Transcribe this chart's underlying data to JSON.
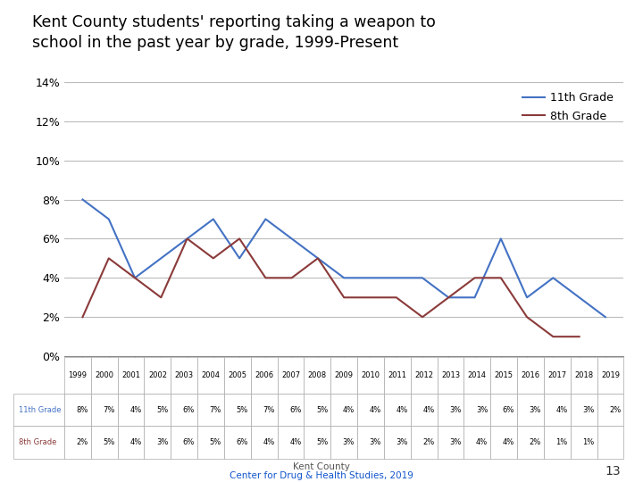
{
  "title": "Kent County students' reporting taking a weapon to\nschool in the past year by grade, 1999-Present",
  "years": [
    1999,
    2000,
    2001,
    2002,
    2003,
    2004,
    2005,
    2006,
    2007,
    2008,
    2009,
    2010,
    2011,
    2012,
    2013,
    2014,
    2015,
    2016,
    2017,
    2018,
    2019
  ],
  "grade11": [
    8,
    7,
    4,
    5,
    6,
    7,
    5,
    7,
    6,
    5,
    4,
    4,
    4,
    4,
    3,
    3,
    6,
    3,
    4,
    3,
    2
  ],
  "grade8": [
    2,
    5,
    4,
    3,
    6,
    5,
    6,
    4,
    4,
    5,
    3,
    3,
    3,
    2,
    3,
    4,
    4,
    2,
    1,
    1,
    null
  ],
  "grade11_color": "#4472C4",
  "grade8_color": "#8B3A3A",
  "ylabel_ticks": [
    0,
    2,
    4,
    6,
    8,
    10,
    12,
    14
  ],
  "ylabel_labels": [
    "0%",
    "2%",
    "4%",
    "6%",
    "8%",
    "10%",
    "12%",
    "14%"
  ],
  "footnote_line1": "Kent County",
  "footnote_line2": "Center for Drug & Health Studies, 2019",
  "page_number": "13",
  "bg_color": "#FFFFFF",
  "grid_color": "#BBBBBB",
  "table_header_bg": "#FFFFFF",
  "table_row_bg": "#FFFFFF"
}
